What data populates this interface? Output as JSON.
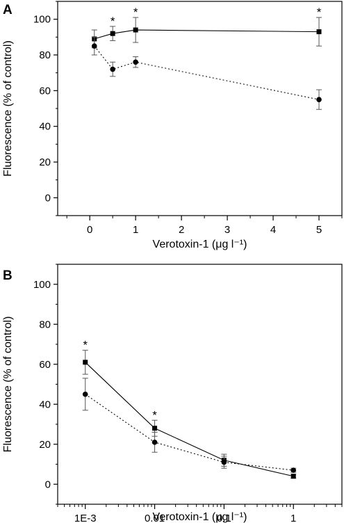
{
  "chart_data": [
    {
      "panel": "A",
      "type": "line",
      "xscale": "linear",
      "xlabel": "Verotoxin-1 (μg l⁻¹)",
      "ylabel": "Fluorescence (% of control)",
      "xlim": [
        -0.7,
        5.5
      ],
      "ylim": [
        -10,
        110
      ],
      "xticks": [
        0,
        1,
        2,
        3,
        4,
        5
      ],
      "xtick_labels": [
        "0",
        "1",
        "2",
        "3",
        "4",
        "5"
      ],
      "yticks": [
        0,
        20,
        40,
        60,
        80,
        100
      ],
      "ytick_labels": [
        "0",
        "20",
        "40",
        "60",
        "80",
        "100"
      ],
      "grid": false,
      "series": [
        {
          "marker": "square",
          "line": "solid",
          "points": [
            {
              "x": 0.1,
              "y": 89,
              "err": 5
            },
            {
              "x": 0.5,
              "y": 92,
              "err": 4,
              "significance": "*"
            },
            {
              "x": 1,
              "y": 94,
              "err": 7,
              "significance": "*"
            },
            {
              "x": 5,
              "y": 93,
              "err": 8,
              "significance": "*"
            }
          ]
        },
        {
          "marker": "circle",
          "line": "dotted",
          "points": [
            {
              "x": 0.1,
              "y": 85,
              "err": 5
            },
            {
              "x": 0.5,
              "y": 72,
              "err": 4
            },
            {
              "x": 1,
              "y": 76,
              "err": 3
            },
            {
              "x": 5,
              "y": 55,
              "err": 5.5
            }
          ]
        }
      ]
    },
    {
      "panel": "B",
      "type": "line",
      "xscale": "log",
      "xlabel": "Verotoxin-1 (μg l⁻¹)",
      "ylabel": "Fluorescence (% of control)",
      "xlim": [
        0.0004,
        5
      ],
      "ylim": [
        -10,
        110
      ],
      "xticks": [
        0.001,
        0.01,
        0.1,
        1
      ],
      "xtick_labels": [
        "1E-3",
        "0.01",
        "0.1",
        "1"
      ],
      "yticks": [
        0,
        20,
        40,
        60,
        80,
        100
      ],
      "ytick_labels": [
        "0",
        "20",
        "40",
        "60",
        "80",
        "100"
      ],
      "grid": false,
      "series": [
        {
          "marker": "square",
          "line": "solid",
          "points": [
            {
              "x": 0.001,
              "y": 61,
              "err": 6,
              "significance": "*"
            },
            {
              "x": 0.01,
              "y": 28,
              "err": 4,
              "significance": "*"
            },
            {
              "x": 0.1,
              "y": 12,
              "err": 3
            },
            {
              "x": 1,
              "y": 4,
              "err": 1
            }
          ]
        },
        {
          "marker": "circle",
          "line": "dotted",
          "points": [
            {
              "x": 0.001,
              "y": 45,
              "err": 8
            },
            {
              "x": 0.01,
              "y": 21,
              "err": 5
            },
            {
              "x": 0.1,
              "y": 11,
              "err": 3
            },
            {
              "x": 1,
              "y": 7,
              "err": 1
            }
          ]
        }
      ]
    }
  ]
}
